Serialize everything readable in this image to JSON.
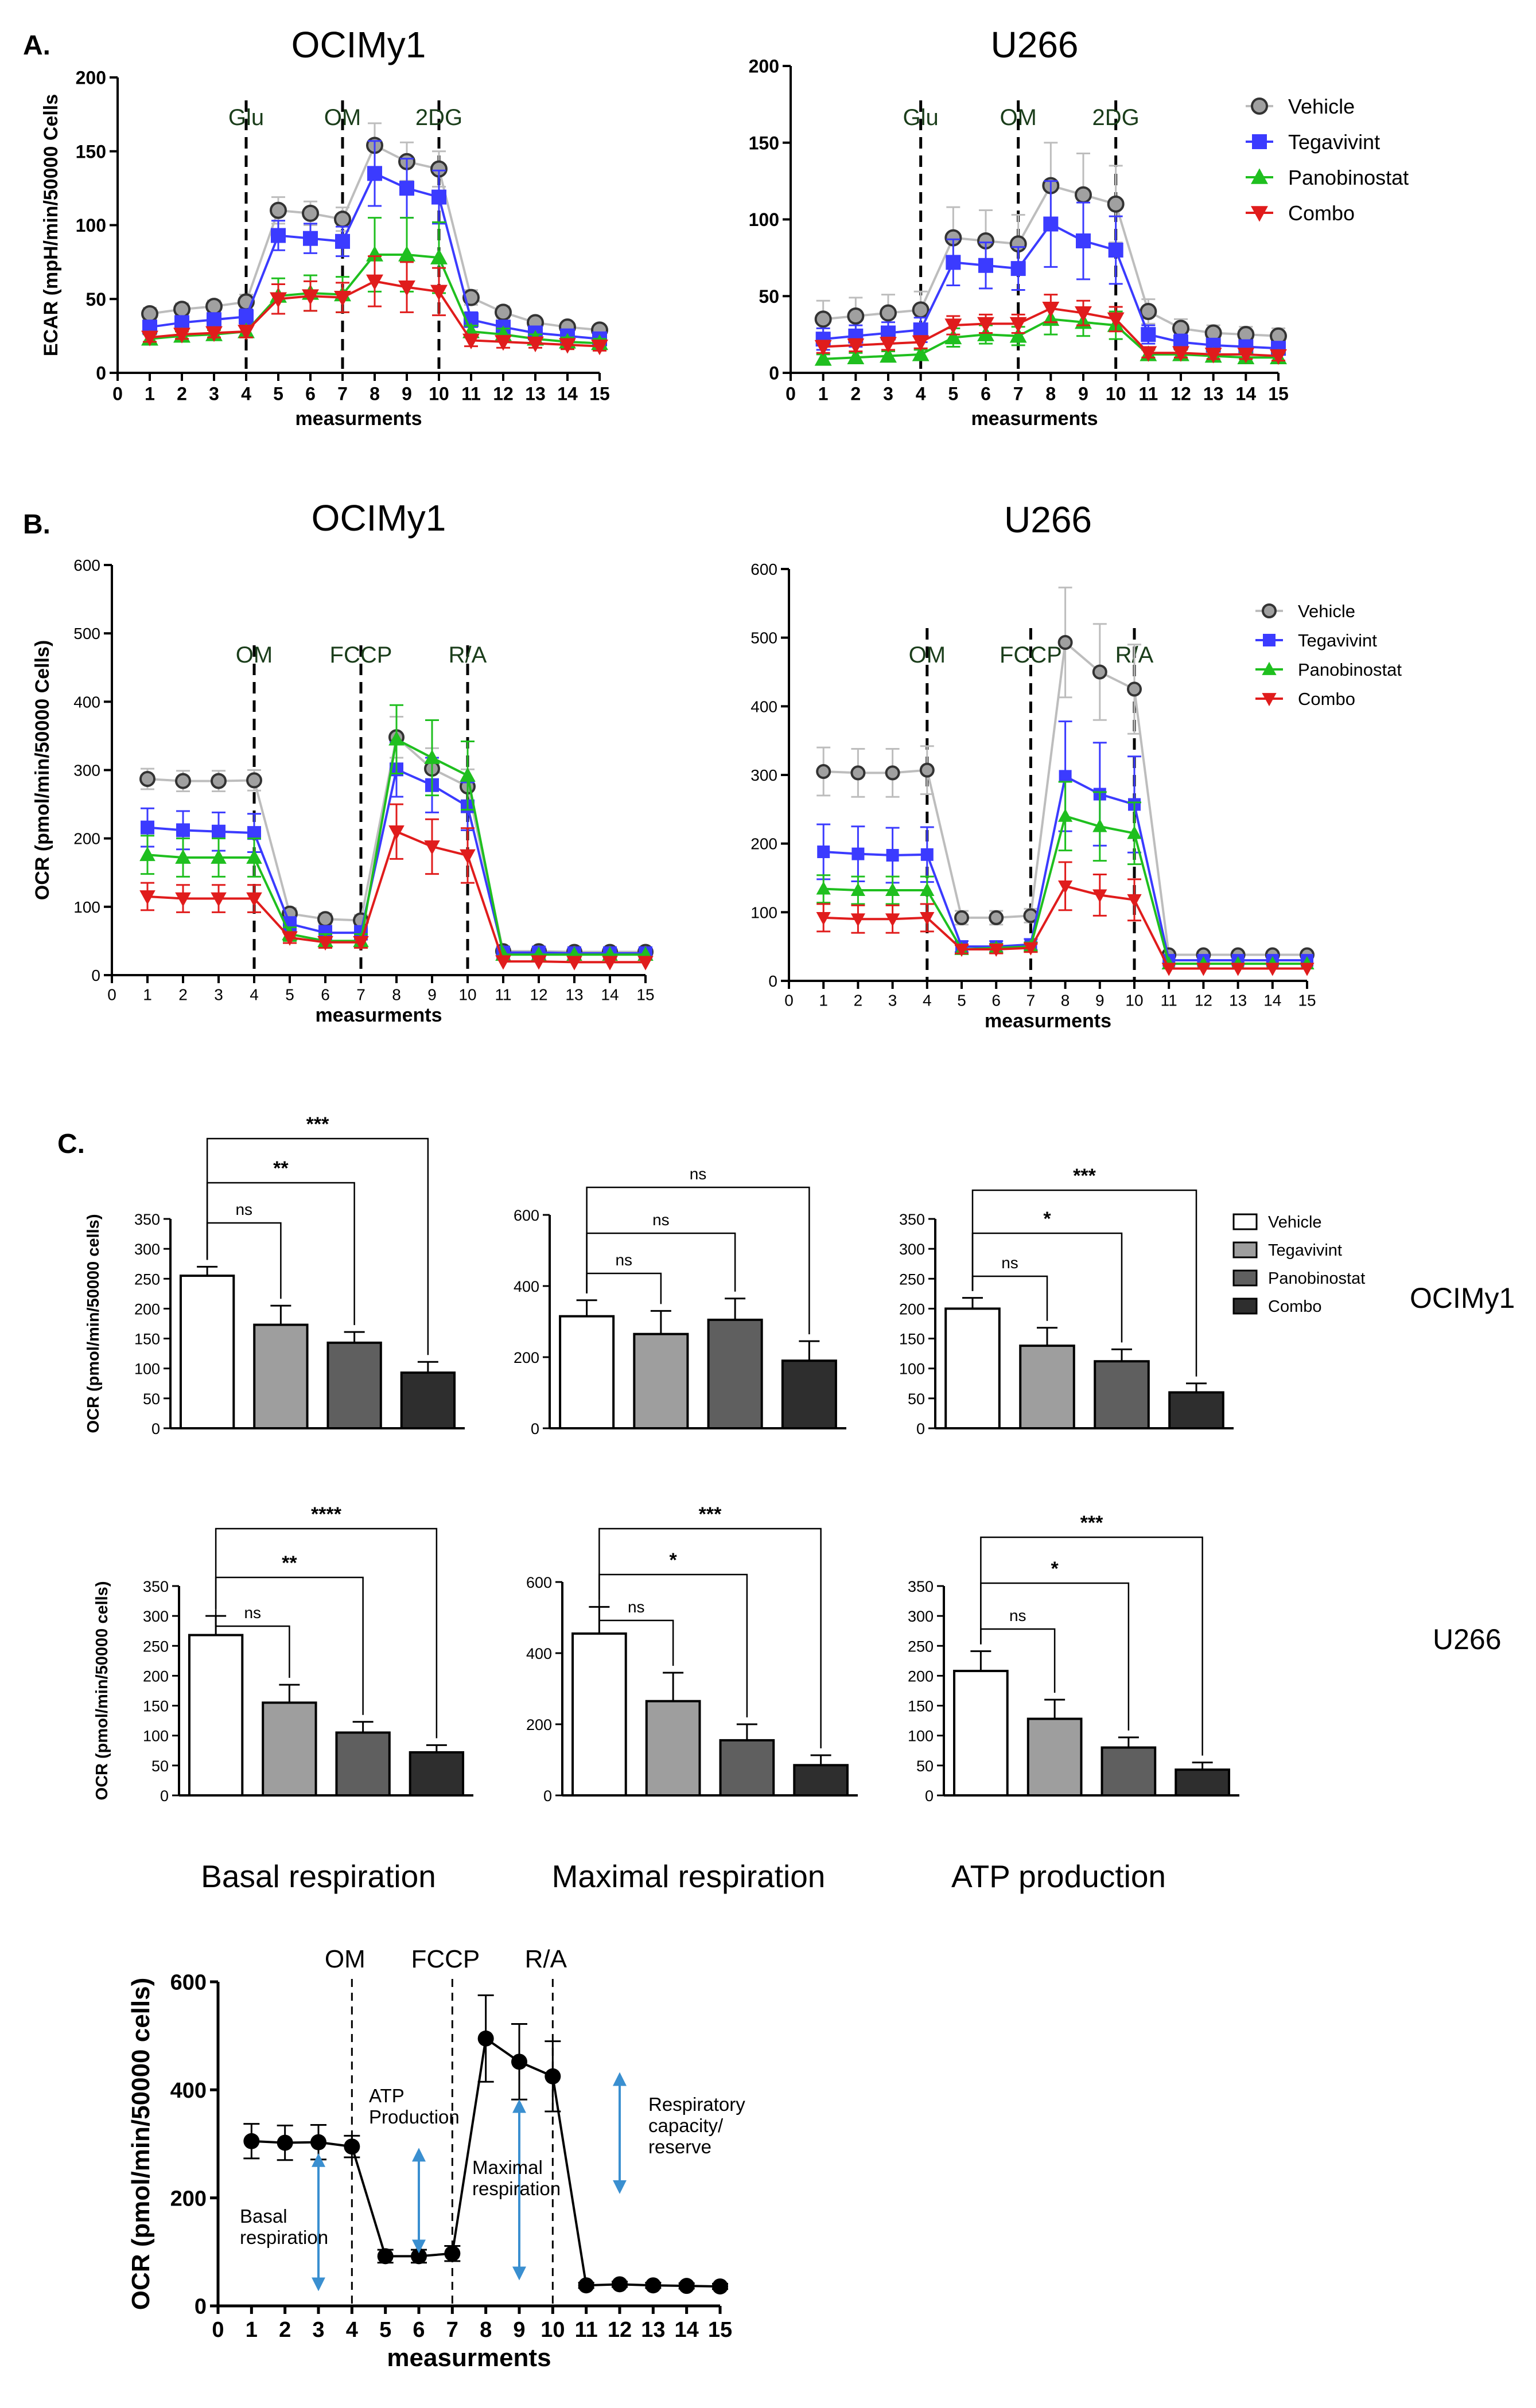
{
  "figure": {
    "panel_labels": {
      "a": "A.",
      "b": "B.",
      "c": "C."
    },
    "row_labels": {
      "ocimy1": "OCIMy1",
      "u266": "U266"
    },
    "column_labels": {
      "basal": "Basal respiration",
      "maximal": "Maximal respiration",
      "atp": "ATP production"
    }
  },
  "colors": {
    "vehicle": "#8c8c8c",
    "tegavivint": "#3b3bff",
    "panobinostat": "#1fbf1f",
    "combo": "#e01c1c",
    "bar_vehicle": "#ffffff",
    "bar_tegavivint": "#9e9e9e",
    "bar_panobinostat": "#5f5f5f",
    "bar_combo": "#2e2e2e",
    "annotation_arrow": "#3a8fd0"
  },
  "chart_data": [
    {
      "id": "A1",
      "type": "line",
      "title": "OCIMy1",
      "xlabel": "measurments",
      "ylabel": "ECAR (mpH/min/50000 Cells",
      "xlim": [
        0,
        15
      ],
      "ylim": [
        0,
        200
      ],
      "yticks": [
        0,
        50,
        100,
        150,
        200
      ],
      "injections": [
        {
          "x": 4,
          "label": "Glu"
        },
        {
          "x": 7,
          "label": "OM"
        },
        {
          "x": 10,
          "label": "2DG"
        }
      ],
      "legend": [
        "Vehicle",
        "Tegavivint",
        "Panobinostat",
        "Combo"
      ],
      "series": [
        {
          "name": "Vehicle",
          "values": [
            40,
            43,
            45,
            48,
            110,
            108,
            104,
            154,
            143,
            138,
            51,
            41,
            34,
            31,
            29
          ],
          "errors": [
            4,
            4,
            4,
            5,
            9,
            8,
            8,
            15,
            13,
            12,
            5,
            4,
            3,
            3,
            3
          ]
        },
        {
          "name": "Tegavivint",
          "values": [
            31,
            34,
            36,
            38,
            93,
            91,
            89,
            135,
            125,
            119,
            36,
            31,
            27,
            25,
            23
          ],
          "errors": [
            4,
            4,
            4,
            5,
            10,
            10,
            10,
            22,
            20,
            18,
            5,
            4,
            3,
            3,
            3
          ]
        },
        {
          "name": "Panobinostat",
          "values": [
            23,
            25,
            26,
            28,
            52,
            54,
            53,
            80,
            80,
            78,
            28,
            26,
            23,
            21,
            20
          ],
          "errors": [
            3,
            3,
            3,
            4,
            12,
            12,
            12,
            25,
            25,
            24,
            4,
            4,
            3,
            3,
            3
          ]
        },
        {
          "name": "Combo",
          "values": [
            24,
            26,
            27,
            28,
            50,
            52,
            51,
            62,
            58,
            55,
            22,
            21,
            20,
            19,
            18
          ],
          "errors": [
            3,
            3,
            3,
            4,
            10,
            10,
            10,
            17,
            17,
            16,
            4,
            4,
            3,
            3,
            3
          ]
        }
      ]
    },
    {
      "id": "A2",
      "type": "line",
      "title": "U266",
      "xlabel": "measurments",
      "ylabel": "",
      "xlim": [
        0,
        15
      ],
      "ylim": [
        0,
        200
      ],
      "yticks": [
        0,
        50,
        100,
        150,
        200
      ],
      "injections": [
        {
          "x": 4,
          "label": "Glu"
        },
        {
          "x": 7,
          "label": "OM"
        },
        {
          "x": 10,
          "label": "2DG"
        }
      ],
      "legend": [
        "Vehicle",
        "Tegavivint",
        "Panobinostat",
        "Combo"
      ],
      "series": [
        {
          "name": "Vehicle",
          "values": [
            35,
            37,
            39,
            41,
            88,
            86,
            84,
            122,
            116,
            110,
            40,
            29,
            26,
            25,
            24
          ],
          "errors": [
            12,
            12,
            12,
            12,
            20,
            20,
            19,
            28,
            27,
            25,
            8,
            6,
            5,
            5,
            5
          ]
        },
        {
          "name": "Tegavivint",
          "values": [
            22,
            24,
            26,
            28,
            72,
            70,
            68,
            97,
            86,
            80,
            25,
            20,
            18,
            17,
            16
          ],
          "errors": [
            7,
            7,
            7,
            8,
            15,
            15,
            14,
            28,
            25,
            22,
            6,
            5,
            4,
            4,
            4
          ]
        },
        {
          "name": "Panobinostat",
          "values": [
            9,
            10,
            11,
            12,
            23,
            25,
            24,
            35,
            33,
            31,
            12,
            12,
            11,
            10,
            10
          ],
          "errors": [
            3,
            3,
            3,
            3,
            6,
            6,
            6,
            10,
            9,
            9,
            3,
            3,
            3,
            3,
            3
          ]
        },
        {
          "name": "Combo",
          "values": [
            17,
            18,
            19,
            20,
            31,
            32,
            32,
            42,
            39,
            35,
            13,
            13,
            12,
            12,
            11
          ],
          "errors": [
            4,
            4,
            4,
            4,
            6,
            6,
            6,
            9,
            8,
            8,
            3,
            3,
            3,
            3,
            3
          ]
        }
      ]
    },
    {
      "id": "B1",
      "type": "line",
      "title": "OCIMy1",
      "xlabel": "measurments",
      "ylabel": "OCR (pmol/min/50000 Cells)",
      "xlim": [
        0,
        15
      ],
      "ylim": [
        0,
        600
      ],
      "yticks": [
        0,
        100,
        200,
        300,
        400,
        500,
        600
      ],
      "injections": [
        {
          "x": 4,
          "label": "OM"
        },
        {
          "x": 7,
          "label": "FCCP"
        },
        {
          "x": 10,
          "label": "R/A"
        }
      ],
      "legend": [],
      "series": [
        {
          "name": "Vehicle",
          "values": [
            287,
            284,
            284,
            285,
            90,
            82,
            80,
            348,
            302,
            276
          ],
          "tail": [
            35,
            35,
            34,
            34,
            34
          ],
          "errors": [
            15,
            15,
            15,
            15,
            8,
            8,
            8,
            30,
            30,
            25
          ]
        },
        {
          "name": "Tegavivint",
          "values": [
            216,
            212,
            210,
            208,
            75,
            62,
            62,
            301,
            278,
            247
          ],
          "tail": [
            33,
            33,
            32,
            32,
            32
          ],
          "errors": [
            28,
            28,
            28,
            28,
            10,
            10,
            10,
            40,
            40,
            35
          ]
        },
        {
          "name": "Panobinostat",
          "values": [
            176,
            172,
            172,
            172,
            60,
            50,
            50,
            345,
            318,
            292
          ],
          "tail": [
            30,
            30,
            30,
            30,
            30
          ],
          "errors": [
            28,
            28,
            28,
            28,
            10,
            10,
            10,
            50,
            55,
            50
          ]
        },
        {
          "name": "Combo",
          "values": [
            115,
            112,
            112,
            112,
            55,
            48,
            48,
            210,
            188,
            175
          ],
          "tail": [
            20,
            20,
            19,
            19,
            19
          ],
          "errors": [
            20,
            20,
            20,
            20,
            8,
            8,
            8,
            40,
            40,
            40
          ]
        }
      ]
    },
    {
      "id": "B2",
      "type": "line",
      "title": "U266",
      "xlabel": "measurments",
      "ylabel": "",
      "xlim": [
        0,
        15
      ],
      "ylim": [
        0,
        600
      ],
      "yticks": [
        0,
        100,
        200,
        300,
        400,
        500,
        600
      ],
      "injections": [
        {
          "x": 4,
          "label": "OM"
        },
        {
          "x": 7,
          "label": "FCCP"
        },
        {
          "x": 10,
          "label": "R/A"
        }
      ],
      "legend": [
        "Vehicle",
        "Tegavivint",
        "Panobinostat",
        "Combo"
      ],
      "series": [
        {
          "name": "Vehicle",
          "values": [
            305,
            303,
            303,
            307,
            92,
            92,
            95,
            493,
            450,
            425
          ],
          "tail": [
            38,
            38,
            38,
            38,
            38
          ],
          "errors": [
            35,
            35,
            35,
            35,
            10,
            10,
            10,
            80,
            70,
            65
          ]
        },
        {
          "name": "Tegavivint",
          "values": [
            188,
            185,
            183,
            184,
            50,
            50,
            53,
            298,
            272,
            257
          ],
          "tail": [
            30,
            30,
            30,
            30,
            30
          ],
          "errors": [
            40,
            40,
            40,
            40,
            8,
            8,
            8,
            80,
            75,
            70
          ]
        },
        {
          "name": "Panobinostat",
          "values": [
            134,
            132,
            132,
            132,
            46,
            48,
            50,
            240,
            225,
            215
          ],
          "tail": [
            25,
            25,
            25,
            25,
            25
          ],
          "errors": [
            20,
            20,
            20,
            20,
            6,
            6,
            6,
            50,
            50,
            45
          ]
        },
        {
          "name": "Combo",
          "values": [
            92,
            90,
            90,
            92,
            46,
            46,
            48,
            138,
            125,
            118
          ],
          "tail": [
            18,
            18,
            18,
            18,
            18
          ],
          "errors": [
            20,
            20,
            20,
            20,
            6,
            6,
            6,
            35,
            30,
            30
          ]
        }
      ]
    },
    {
      "id": "C1",
      "type": "bar",
      "title": "",
      "ylabel": "OCR (pmol/min/50000 cells)",
      "categories": [
        "Vehicle",
        "Tegavivint",
        "Panobinostat",
        "Combo"
      ],
      "values": [
        255,
        173,
        143,
        93
      ],
      "errors": [
        15,
        32,
        18,
        18
      ],
      "ylim": [
        0,
        350
      ],
      "yticks": [
        0,
        50,
        100,
        150,
        200,
        250,
        300,
        350
      ],
      "comparisons": [
        {
          "to": 1,
          "label": "ns"
        },
        {
          "to": 2,
          "label": "**"
        },
        {
          "to": 3,
          "label": "***"
        }
      ]
    },
    {
      "id": "C2",
      "type": "bar",
      "title": "",
      "ylabel": "",
      "categories": [
        "Vehicle",
        "Tegavivint",
        "Panobinostat",
        "Combo"
      ],
      "values": [
        315,
        265,
        305,
        190
      ],
      "errors": [
        45,
        65,
        60,
        55
      ],
      "ylim": [
        0,
        600
      ],
      "yticks": [
        0,
        200,
        400,
        600
      ],
      "comparisons": [
        {
          "to": 1,
          "label": "ns"
        },
        {
          "to": 2,
          "label": "ns"
        },
        {
          "to": 3,
          "label": "ns"
        }
      ]
    },
    {
      "id": "C3",
      "type": "bar",
      "title": "",
      "ylabel": "",
      "categories": [
        "Vehicle",
        "Tegavivint",
        "Panobinostat",
        "Combo"
      ],
      "values": [
        200,
        138,
        112,
        60
      ],
      "errors": [
        18,
        30,
        20,
        15
      ],
      "ylim": [
        0,
        350
      ],
      "yticks": [
        0,
        50,
        100,
        150,
        200,
        250,
        300,
        350
      ],
      "comparisons": [
        {
          "to": 1,
          "label": "ns"
        },
        {
          "to": 2,
          "label": "*"
        },
        {
          "to": 3,
          "label": "***"
        }
      ],
      "legend": [
        "Vehicle",
        "Tegavivint",
        "Panobinostat",
        "Combo"
      ]
    },
    {
      "id": "C4",
      "type": "bar",
      "title": "",
      "ylabel": "OCR (pmol/min/50000 cells)",
      "categories": [
        "Vehicle",
        "Tegavivint",
        "Panobinostat",
        "Combo"
      ],
      "values": [
        268,
        155,
        105,
        72
      ],
      "errors": [
        32,
        30,
        18,
        12
      ],
      "ylim": [
        0,
        350
      ],
      "yticks": [
        0,
        50,
        100,
        150,
        200,
        250,
        300,
        350
      ],
      "comparisons": [
        {
          "to": 1,
          "label": "ns"
        },
        {
          "to": 2,
          "label": "**"
        },
        {
          "to": 3,
          "label": "****"
        }
      ]
    },
    {
      "id": "C5",
      "type": "bar",
      "title": "",
      "ylabel": "",
      "categories": [
        "Vehicle",
        "Tegavivint",
        "Panobinostat",
        "Combo"
      ],
      "values": [
        455,
        265,
        155,
        85
      ],
      "errors": [
        75,
        80,
        45,
        28
      ],
      "ylim": [
        0,
        600
      ],
      "yticks": [
        0,
        200,
        400,
        600
      ],
      "comparisons": [
        {
          "to": 1,
          "label": "ns"
        },
        {
          "to": 2,
          "label": "*"
        },
        {
          "to": 3,
          "label": "***"
        }
      ]
    },
    {
      "id": "C6",
      "type": "bar",
      "title": "",
      "ylabel": "",
      "categories": [
        "Vehicle",
        "Tegavivint",
        "Panobinostat",
        "Combo"
      ],
      "values": [
        208,
        128,
        80,
        43
      ],
      "errors": [
        33,
        32,
        17,
        12
      ],
      "ylim": [
        0,
        350
      ],
      "yticks": [
        0,
        50,
        100,
        150,
        200,
        250,
        300,
        350
      ],
      "comparisons": [
        {
          "to": 1,
          "label": "ns"
        },
        {
          "to": 2,
          "label": "*"
        },
        {
          "to": 3,
          "label": "***"
        }
      ]
    },
    {
      "id": "D",
      "type": "line",
      "title": "",
      "xlabel": "measurments",
      "ylabel": "OCR (pmol/min/50000 cells)",
      "xlim": [
        0,
        15
      ],
      "ylim": [
        0,
        600
      ],
      "yticks": [
        0,
        200,
        400,
        600
      ],
      "injections": [
        {
          "x": 4,
          "label": "OM"
        },
        {
          "x": 7,
          "label": "FCCP"
        },
        {
          "x": 10,
          "label": "R/A"
        }
      ],
      "series": [
        {
          "name": "Vehicle",
          "values": [
            305,
            302,
            303,
            295,
            92,
            92,
            97,
            495,
            452,
            425,
            38,
            40,
            38,
            37,
            36
          ],
          "errors": [
            32,
            32,
            32,
            20,
            12,
            12,
            14,
            80,
            70,
            65,
            5,
            5,
            5,
            5,
            5
          ]
        }
      ],
      "annotations": [
        "Basal\nrespiration",
        "ATP\nProduction",
        "Maximal\nrespiration",
        "Respiratory\ncapacity/\nreserve"
      ]
    }
  ]
}
